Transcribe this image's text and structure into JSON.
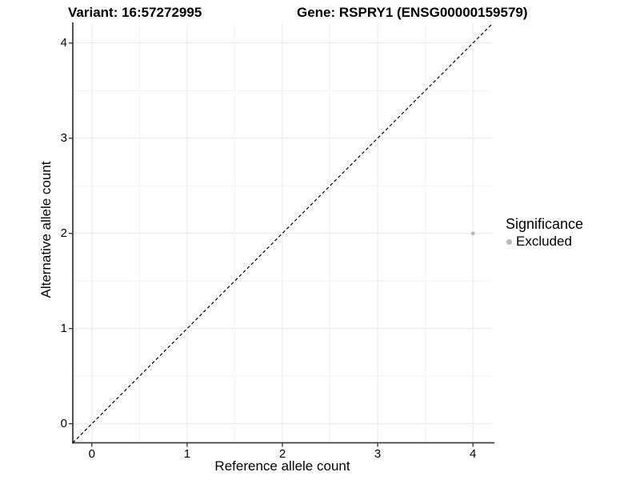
{
  "chart_data": {
    "type": "scatter",
    "title_left": "Variant: 16:57272995",
    "title_right": "Gene: RSPRY1 (ENSG00000159579)",
    "xlabel": "Reference allele count",
    "ylabel": "Alternative allele count",
    "xlim": [
      -0.2,
      4.2
    ],
    "ylim": [
      -0.2,
      4.2
    ],
    "x_ticks": [
      0,
      1,
      2,
      3,
      4
    ],
    "y_ticks": [
      0,
      1,
      2,
      3,
      4
    ],
    "x_minor_ticks": [
      0.5,
      1.5,
      2.5,
      3.5
    ],
    "y_minor_ticks": [
      0.5,
      1.5,
      2.5,
      3.5
    ],
    "grid": "major and minor gridlines on white background",
    "points": [
      {
        "x": 4,
        "y": 2,
        "series": "Excluded"
      }
    ],
    "identity_line": {
      "style": "dashed",
      "x1": -0.2,
      "y1": -0.2,
      "x2": 4.2,
      "y2": 4.2
    },
    "legend": {
      "title": "Significance",
      "position": "right",
      "items": [
        {
          "label": "Excluded",
          "color": "#b9b9b9"
        }
      ]
    },
    "colors": {
      "point_excluded": "#b9b9b9",
      "grid_major": "#e8e8e8",
      "grid_minor": "#f4f4f4",
      "axis_line": "#404040",
      "tick_mark": "#333333",
      "identity_line": "#000000",
      "text": "#000000",
      "background": "#ffffff"
    }
  }
}
